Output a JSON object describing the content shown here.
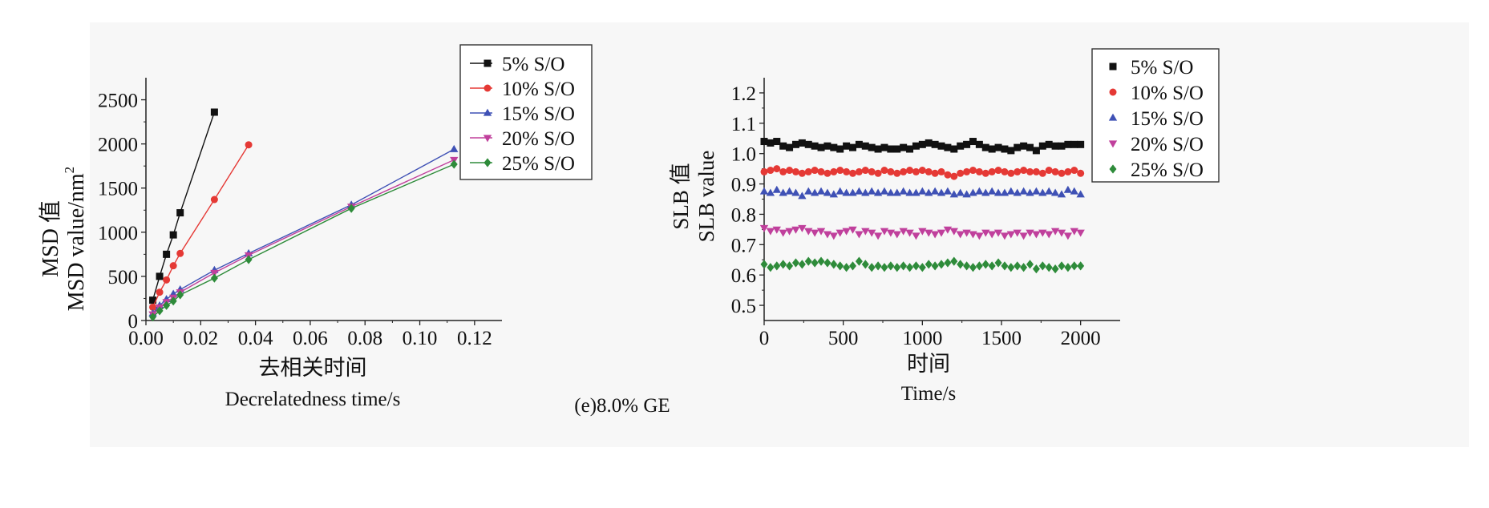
{
  "caption": "(e)8.0%  GE",
  "chart_data": [
    {
      "type": "line",
      "ylabel_cn": "MSD 值",
      "ylabel_en": "MSD  value/nm",
      "ylabel_sup": "2",
      "xlabel_cn": "去相关时间",
      "xlabel_en": "Decrelatedness  time/s",
      "xlim": [
        0,
        0.13
      ],
      "ylim": [
        0,
        2750
      ],
      "xticks": [
        0.0,
        0.02,
        0.04,
        0.06,
        0.08,
        0.1,
        0.12
      ],
      "xtick_labels": [
        "0.00",
        "0.02",
        "0.04",
        "0.06",
        "0.08",
        "0.10",
        "0.12"
      ],
      "yticks": [
        0,
        500,
        1000,
        1500,
        2000,
        2500
      ],
      "ytick_labels": [
        "0",
        "500",
        "1000",
        "1500",
        "2000",
        "2500"
      ],
      "legend_position": "top-right",
      "series": [
        {
          "name": "5% S/O",
          "color": "#111111",
          "marker": "square",
          "x": [
            0.0025,
            0.005,
            0.0075,
            0.01,
            0.0125,
            0.025
          ],
          "y": [
            230,
            500,
            750,
            970,
            1220,
            2360
          ]
        },
        {
          "name": "10% S/O",
          "color": "#e53935",
          "marker": "circle",
          "x": [
            0.0025,
            0.005,
            0.0075,
            0.01,
            0.0125,
            0.025,
            0.0375
          ],
          "y": [
            150,
            320,
            460,
            620,
            760,
            1370,
            1990
          ]
        },
        {
          "name": "15% S/O",
          "color": "#3f51b5",
          "marker": "triangle-up",
          "x": [
            0.0025,
            0.005,
            0.0075,
            0.01,
            0.0125,
            0.025,
            0.0375,
            0.075,
            0.1125
          ],
          "y": [
            80,
            170,
            240,
            300,
            350,
            570,
            760,
            1310,
            1940
          ]
        },
        {
          "name": "20% S/O",
          "color": "#c0409c",
          "marker": "triangle-down",
          "x": [
            0.0025,
            0.005,
            0.0075,
            0.01,
            0.0125,
            0.025,
            0.0375,
            0.075,
            0.1125
          ],
          "y": [
            70,
            150,
            210,
            260,
            320,
            540,
            740,
            1290,
            1820
          ]
        },
        {
          "name": "25% S/O",
          "color": "#2e8b3a",
          "marker": "diamond",
          "x": [
            0.0025,
            0.005,
            0.0075,
            0.01,
            0.0125,
            0.025,
            0.0375,
            0.075,
            0.1125
          ],
          "y": [
            40,
            110,
            170,
            220,
            290,
            480,
            690,
            1270,
            1770
          ]
        }
      ]
    },
    {
      "type": "scatter",
      "ylabel_cn": "SLB 值",
      "ylabel_en": "SLB  value",
      "xlabel_cn": "时间",
      "xlabel_en": "Time/s",
      "xlim": [
        0,
        2250
      ],
      "ylim": [
        0.45,
        1.25
      ],
      "xticks": [
        0,
        500,
        1000,
        1500,
        2000
      ],
      "xtick_labels": [
        "0",
        "500",
        "1000",
        "1500",
        "2000"
      ],
      "yticks": [
        0.5,
        0.6,
        0.7,
        0.8,
        0.9,
        1.0,
        1.1,
        1.2
      ],
      "ytick_labels": [
        "0.5",
        "0.6",
        "0.7",
        "0.8",
        "0.9",
        "1.0",
        "1.1",
        "1.2"
      ],
      "legend_position": "top-right",
      "x": [
        0,
        40,
        80,
        120,
        160,
        200,
        240,
        280,
        320,
        360,
        400,
        440,
        480,
        520,
        560,
        600,
        640,
        680,
        720,
        760,
        800,
        840,
        880,
        920,
        960,
        1000,
        1040,
        1080,
        1120,
        1160,
        1200,
        1240,
        1280,
        1320,
        1360,
        1400,
        1440,
        1480,
        1520,
        1560,
        1600,
        1640,
        1680,
        1720,
        1760,
        1800,
        1840,
        1880,
        1920,
        1960,
        2000
      ],
      "series": [
        {
          "name": "5% S/O",
          "color": "#111111",
          "marker": "square",
          "y": [
            1.04,
            1.035,
            1.04,
            1.025,
            1.02,
            1.03,
            1.035,
            1.03,
            1.025,
            1.02,
            1.025,
            1.02,
            1.015,
            1.025,
            1.02,
            1.03,
            1.025,
            1.02,
            1.015,
            1.02,
            1.015,
            1.015,
            1.02,
            1.015,
            1.025,
            1.03,
            1.035,
            1.03,
            1.025,
            1.02,
            1.015,
            1.025,
            1.03,
            1.04,
            1.03,
            1.02,
            1.015,
            1.02,
            1.015,
            1.01,
            1.02,
            1.025,
            1.02,
            1.01,
            1.025,
            1.03,
            1.025,
            1.025,
            1.03,
            1.03,
            1.03
          ]
        },
        {
          "name": "10% S/O",
          "color": "#e53935",
          "marker": "circle",
          "y": [
            0.94,
            0.945,
            0.95,
            0.94,
            0.945,
            0.94,
            0.935,
            0.94,
            0.945,
            0.94,
            0.935,
            0.94,
            0.945,
            0.94,
            0.935,
            0.94,
            0.945,
            0.94,
            0.935,
            0.945,
            0.94,
            0.935,
            0.94,
            0.945,
            0.94,
            0.945,
            0.94,
            0.935,
            0.94,
            0.93,
            0.925,
            0.935,
            0.94,
            0.945,
            0.94,
            0.935,
            0.94,
            0.945,
            0.94,
            0.935,
            0.94,
            0.945,
            0.94,
            0.94,
            0.935,
            0.945,
            0.94,
            0.935,
            0.94,
            0.945,
            0.935
          ]
        },
        {
          "name": "15% S/O",
          "color": "#3f51b5",
          "marker": "triangle-up",
          "y": [
            0.875,
            0.87,
            0.88,
            0.87,
            0.875,
            0.87,
            0.86,
            0.875,
            0.87,
            0.875,
            0.87,
            0.865,
            0.875,
            0.87,
            0.87,
            0.875,
            0.87,
            0.875,
            0.87,
            0.875,
            0.87,
            0.87,
            0.875,
            0.87,
            0.87,
            0.875,
            0.87,
            0.875,
            0.87,
            0.875,
            0.865,
            0.87,
            0.865,
            0.87,
            0.875,
            0.87,
            0.875,
            0.87,
            0.87,
            0.875,
            0.87,
            0.875,
            0.87,
            0.875,
            0.87,
            0.875,
            0.87,
            0.865,
            0.88,
            0.875,
            0.865
          ]
        },
        {
          "name": "20% S/O",
          "color": "#c0409c",
          "marker": "triangle-down",
          "y": [
            0.755,
            0.745,
            0.75,
            0.74,
            0.745,
            0.75,
            0.755,
            0.745,
            0.74,
            0.745,
            0.735,
            0.73,
            0.74,
            0.745,
            0.75,
            0.735,
            0.745,
            0.74,
            0.73,
            0.745,
            0.74,
            0.735,
            0.745,
            0.74,
            0.73,
            0.745,
            0.74,
            0.735,
            0.74,
            0.75,
            0.745,
            0.735,
            0.74,
            0.735,
            0.73,
            0.74,
            0.735,
            0.74,
            0.73,
            0.735,
            0.74,
            0.73,
            0.74,
            0.735,
            0.74,
            0.735,
            0.745,
            0.74,
            0.73,
            0.745,
            0.74
          ]
        },
        {
          "name": "25% S/O",
          "color": "#2e8b3a",
          "marker": "diamond",
          "y": [
            0.635,
            0.625,
            0.63,
            0.635,
            0.63,
            0.64,
            0.635,
            0.645,
            0.64,
            0.645,
            0.64,
            0.635,
            0.63,
            0.625,
            0.63,
            0.645,
            0.635,
            0.625,
            0.63,
            0.625,
            0.63,
            0.625,
            0.63,
            0.625,
            0.63,
            0.625,
            0.635,
            0.63,
            0.635,
            0.64,
            0.645,
            0.635,
            0.63,
            0.625,
            0.63,
            0.635,
            0.63,
            0.64,
            0.63,
            0.625,
            0.63,
            0.625,
            0.635,
            0.62,
            0.63,
            0.625,
            0.62,
            0.63,
            0.625,
            0.63,
            0.63
          ]
        }
      ]
    }
  ]
}
